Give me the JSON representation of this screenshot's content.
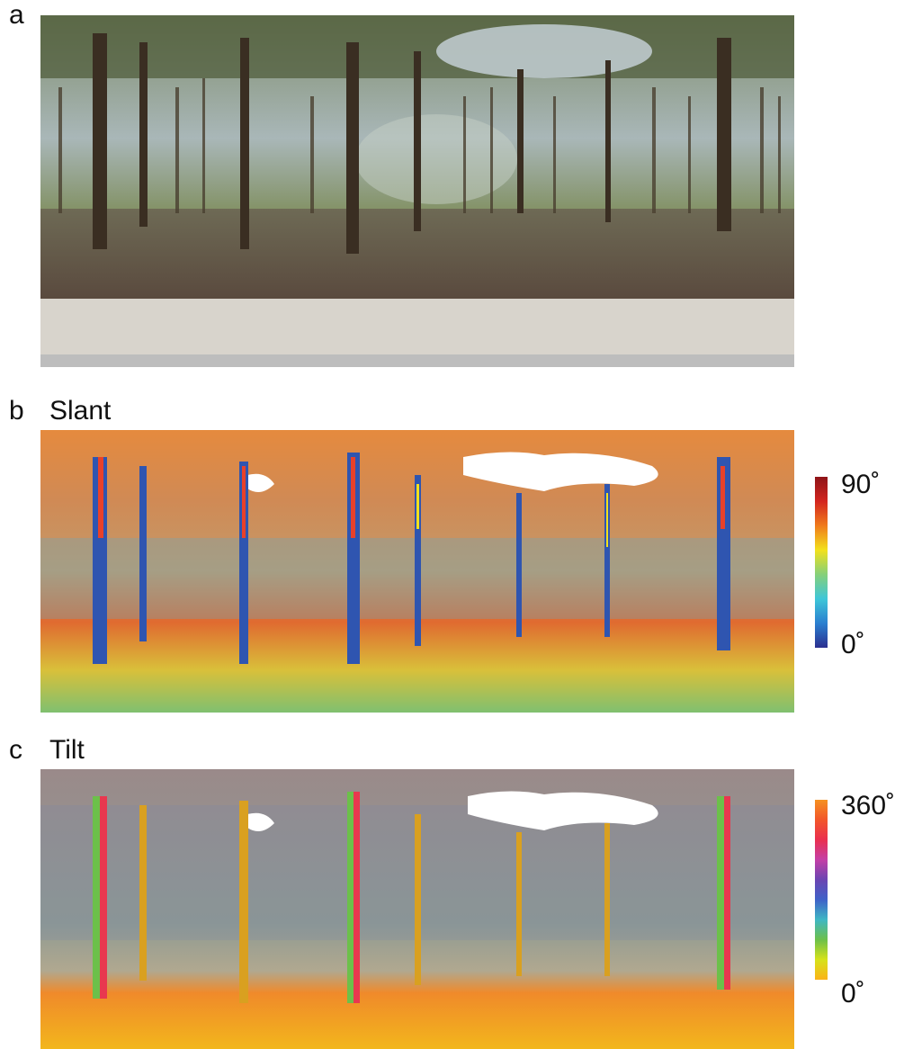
{
  "panels": [
    {
      "letter": "a",
      "title": ""
    },
    {
      "letter": "b",
      "title": "Slant"
    },
    {
      "letter": "c",
      "title": "Tilt"
    }
  ],
  "colorbars": {
    "slant": {
      "max_label": "90˚",
      "min_label": "0˚",
      "stops": [
        "#2b2f8f",
        "#2a7fd0",
        "#3ec6d8",
        "#86d07a",
        "#f2e11c",
        "#f07b1c",
        "#d3251f",
        "#8e1418"
      ]
    },
    "tilt": {
      "max_label": "360˚",
      "min_label": "0˚",
      "stops": [
        "#fbb318",
        "#d6e21a",
        "#6cc04a",
        "#3fb7c4",
        "#3f62c8",
        "#6b45b2",
        "#c43fa6",
        "#ea2f4f",
        "#f2562a",
        "#f59121"
      ]
    }
  }
}
